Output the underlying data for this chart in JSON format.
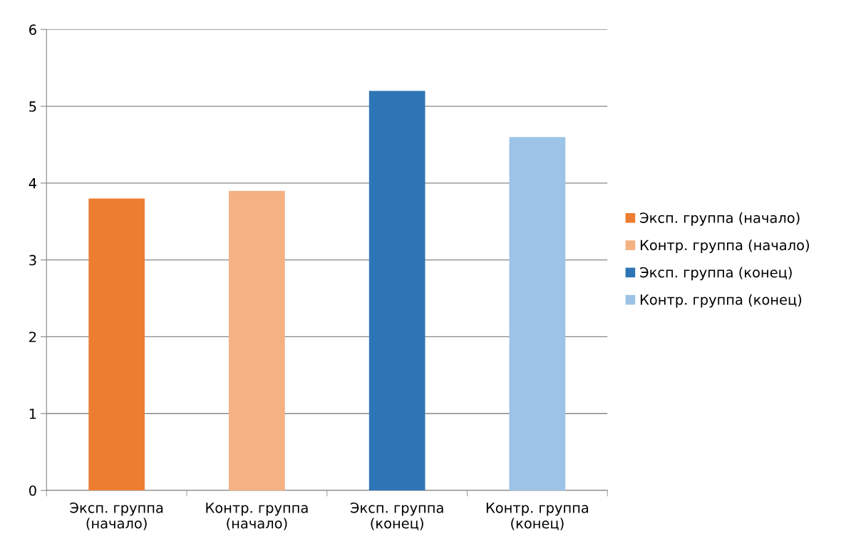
{
  "chart_data": {
    "type": "bar",
    "categories": [
      "Эксп. группа (начало)",
      "Контр. группа (начало)",
      "Эксп. группа (конец)",
      "Контр. группа (конец)"
    ],
    "series": [
      {
        "name": "Эксп. группа (начало)",
        "color": "#ed7d31",
        "values": [
          3.8,
          null,
          null,
          null
        ]
      },
      {
        "name": "Контр. группа (начало)",
        "color": "#f4b183",
        "values": [
          null,
          3.9,
          null,
          null
        ]
      },
      {
        "name": "Эксп. группа (конец)",
        "color": "#2e75b6",
        "values": [
          null,
          null,
          5.2,
          null
        ]
      },
      {
        "name": "Контр. группа (конец)",
        "color": "#9dc3e6",
        "values": [
          null,
          null,
          null,
          4.6
        ]
      }
    ],
    "ylim": [
      0,
      6
    ],
    "yticks": [
      0,
      1,
      2,
      3,
      4,
      5,
      6
    ],
    "grid": "y",
    "legend": "right"
  }
}
